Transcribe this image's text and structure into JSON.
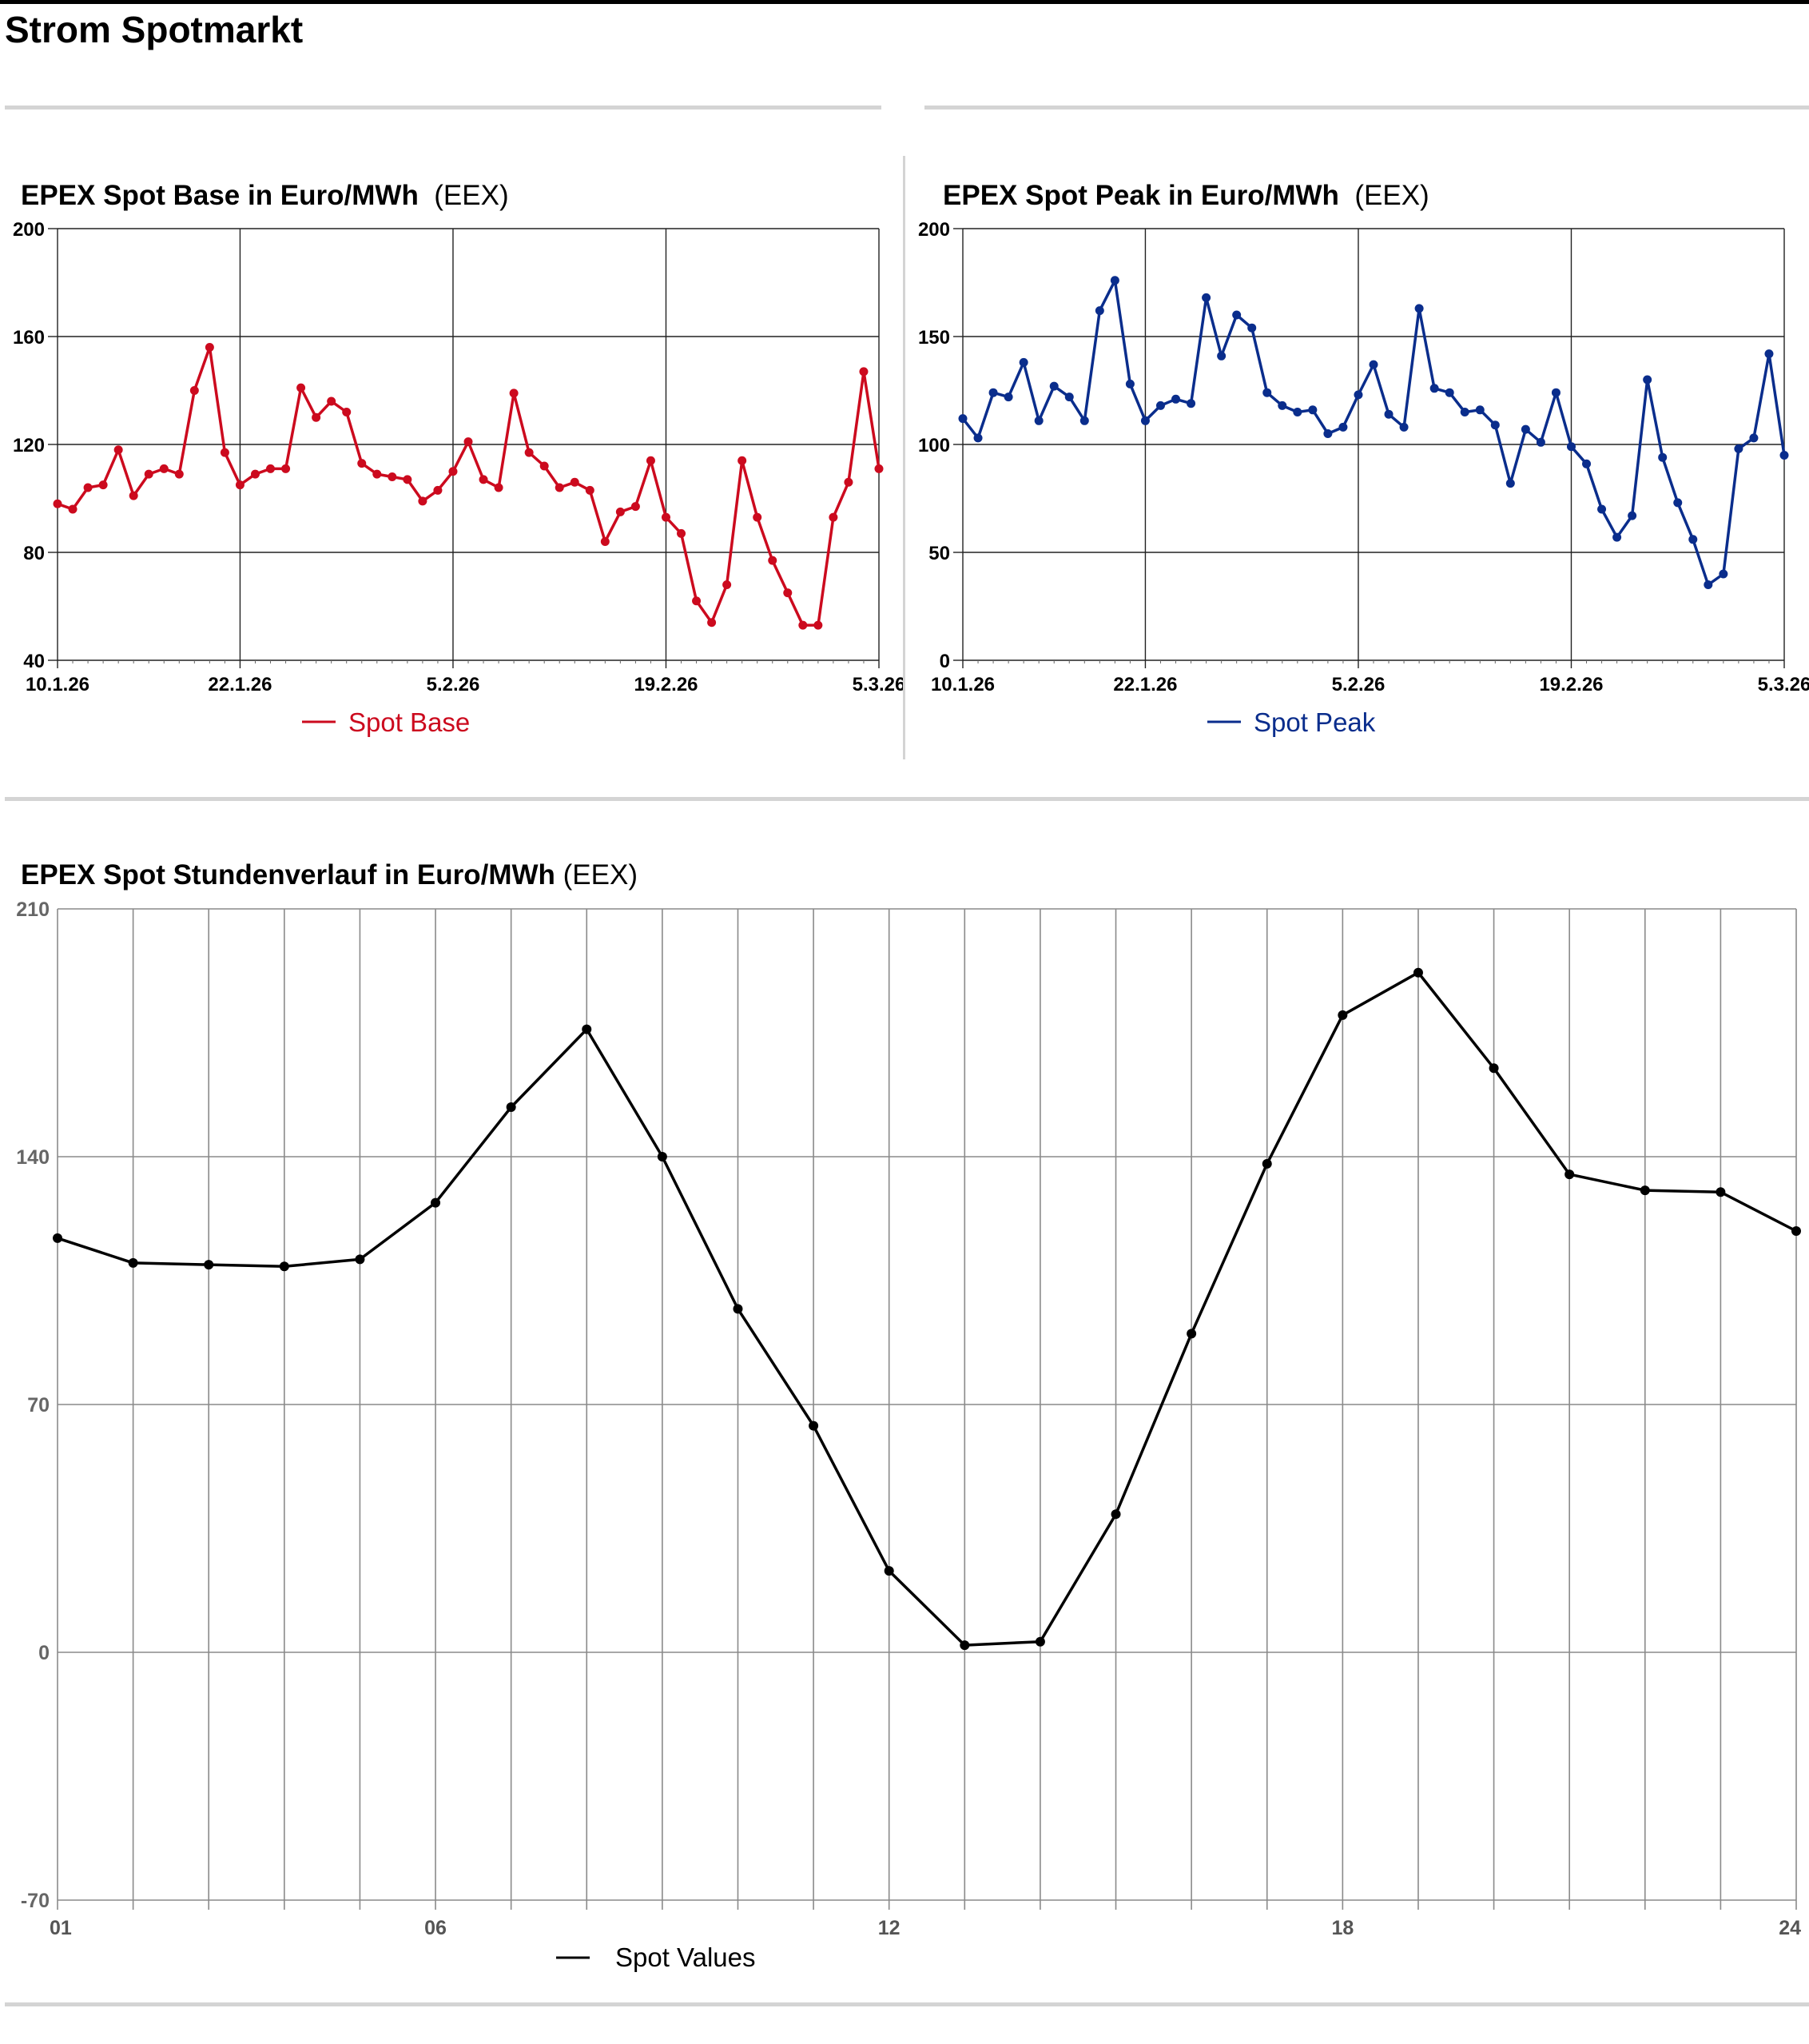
{
  "page_title": "Strom Spotmarkt",
  "colors": {
    "base": "#cc0a1e",
    "peak": "#0a2d8c",
    "hourly": "#000000"
  },
  "chart_data": [
    {
      "type": "line",
      "title": "EPEX Spot Base in Euro/MWh",
      "source": "(EEX)",
      "ylim": [
        40,
        200
      ],
      "yticks": [
        "200",
        "160",
        "120",
        "80",
        "40"
      ],
      "xticks": [
        "10.1.26",
        "22.1.26",
        "5.2.26",
        "19.2.26",
        "5.3.26"
      ],
      "grid": true,
      "legend_position": "bottom-center",
      "series": [
        {
          "name": "Spot Base",
          "values": [
            98,
            96,
            104,
            105,
            118,
            101,
            109,
            111,
            109,
            140,
            156,
            117,
            105,
            109,
            111,
            111,
            141,
            130,
            136,
            132,
            113,
            109,
            108,
            107,
            99,
            103,
            110,
            121,
            107,
            104,
            139,
            117,
            112,
            104,
            106,
            103,
            84,
            95,
            97,
            114,
            93,
            87,
            62,
            54,
            68,
            114,
            93,
            77,
            65,
            53,
            53,
            93,
            106,
            147,
            111
          ]
        }
      ]
    },
    {
      "type": "line",
      "title": "EPEX Spot Peak in Euro/MWh",
      "source": "(EEX)",
      "ylim": [
        0,
        200
      ],
      "yticks": [
        "200",
        "150",
        "100",
        "50",
        "0"
      ],
      "xticks": [
        "10.1.26",
        "22.1.26",
        "5.2.26",
        "19.2.26",
        "5.3.26"
      ],
      "grid": true,
      "legend_position": "bottom-center",
      "series": [
        {
          "name": "Spot Peak",
          "values": [
            112,
            103,
            124,
            122,
            138,
            111,
            127,
            122,
            111,
            162,
            176,
            128,
            111,
            118,
            121,
            119,
            168,
            141,
            160,
            154,
            124,
            118,
            115,
            116,
            105,
            108,
            123,
            137,
            114,
            108,
            163,
            126,
            124,
            115,
            116,
            109,
            82,
            107,
            101,
            124,
            99,
            91,
            70,
            57,
            67,
            130,
            94,
            73,
            56,
            35,
            40,
            98,
            103,
            142,
            95
          ]
        }
      ]
    },
    {
      "type": "line",
      "title": "EPEX Spot Stundenverlauf in Euro/MWh",
      "source": "(EEX)",
      "ylim": [
        -70,
        210
      ],
      "yticks": [
        "210",
        "140",
        "70",
        "0",
        "-70"
      ],
      "x": [
        1,
        2,
        3,
        4,
        5,
        6,
        7,
        8,
        9,
        10,
        11,
        12,
        13,
        14,
        15,
        16,
        17,
        18,
        19,
        20,
        21,
        22,
        23,
        24
      ],
      "xtick_labels": [
        "01",
        "06",
        "12",
        "18",
        "24"
      ],
      "grid": true,
      "legend_position": "bottom-center",
      "series": [
        {
          "name": "Spot Values",
          "values": [
            117,
            110,
            109.5,
            109,
            111,
            127,
            154,
            176,
            140,
            97,
            64,
            23,
            2,
            3,
            39,
            90,
            138,
            180,
            192,
            165,
            135,
            130.5,
            130,
            119
          ]
        }
      ]
    }
  ]
}
